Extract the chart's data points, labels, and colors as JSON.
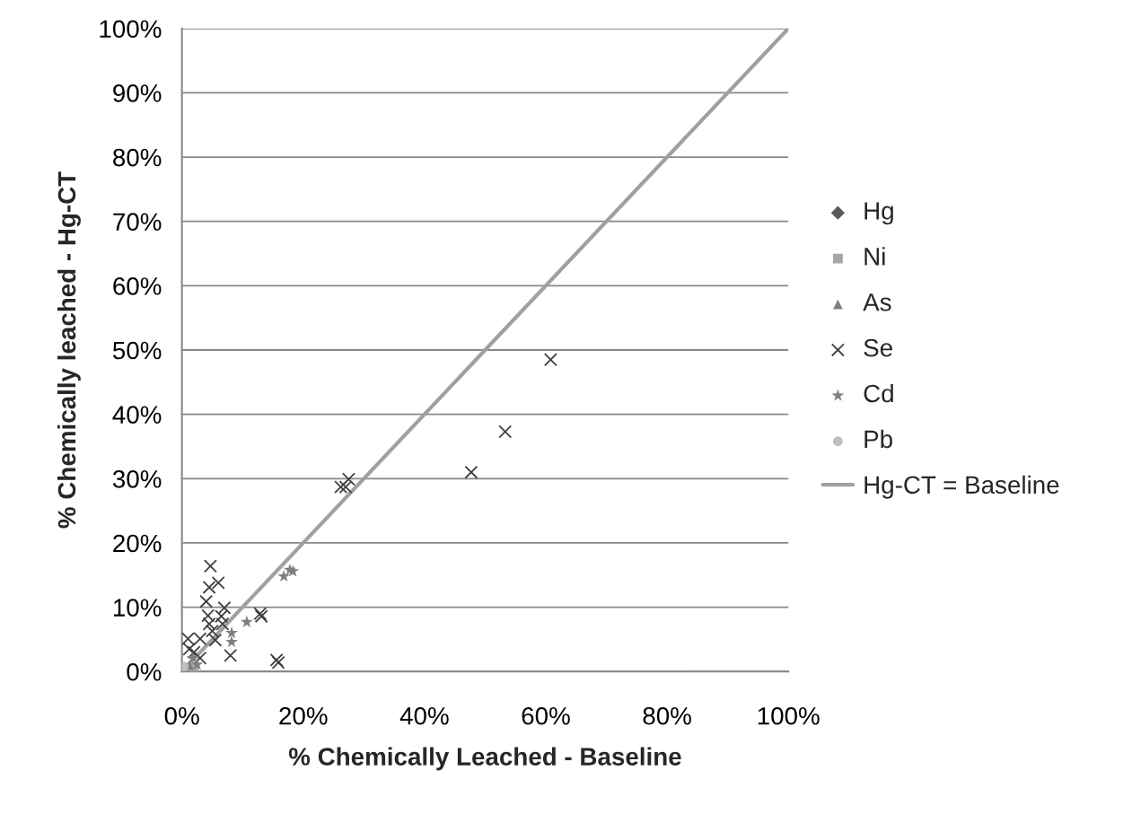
{
  "chart_data": {
    "type": "scatter",
    "xlabel": "% Chemically Leached - Baseline",
    "ylabel": "% Chemically leached - Hg-CT",
    "xlim": [
      0,
      1
    ],
    "ylim": [
      0,
      1
    ],
    "xticks": [
      {
        "value": 0,
        "label": "0%"
      },
      {
        "value": 0.2,
        "label": "20%"
      },
      {
        "value": 0.4,
        "label": "40%"
      },
      {
        "value": 0.6,
        "label": "60%"
      },
      {
        "value": 0.8,
        "label": "80%"
      },
      {
        "value": 1,
        "label": "100%"
      }
    ],
    "yticks": [
      {
        "value": 0,
        "label": "0%"
      },
      {
        "value": 0.1,
        "label": "10%"
      },
      {
        "value": 0.2,
        "label": "20%"
      },
      {
        "value": 0.3,
        "label": "30%"
      },
      {
        "value": 0.4,
        "label": "40%"
      },
      {
        "value": 0.5,
        "label": "50%"
      },
      {
        "value": 0.6,
        "label": "60%"
      },
      {
        "value": 0.7,
        "label": "70%"
      },
      {
        "value": 0.8,
        "label": "80%"
      },
      {
        "value": 0.9,
        "label": "90%"
      },
      {
        "value": 1,
        "label": "100%"
      }
    ],
    "grid": "y",
    "legend": "right",
    "series": [
      {
        "name": "Hg",
        "color": "#595959",
        "marker": "diamond"
      },
      {
        "name": "Ni",
        "color": "#a6a6a6",
        "marker": "square",
        "x": [
          0.02
        ],
        "values": [
          0.005
        ]
      },
      {
        "name": "As",
        "color": "#7f7f7f",
        "marker": "triangle",
        "x": [
          0.012
        ],
        "values": [
          0.01
        ]
      },
      {
        "name": "Se",
        "color": "#404040",
        "marker": "cross",
        "x": [
          0.608,
          0.533,
          0.477,
          0.275,
          0.262,
          0.27,
          0.047,
          0.06,
          0.045,
          0.04,
          0.07,
          0.043,
          0.045,
          0.065,
          0.067,
          0.129,
          0.131,
          0.08,
          0.156,
          0.159,
          0.01,
          0.012,
          0.03,
          0.05,
          0.055,
          0.03,
          0.02
        ],
        "values": [
          0.485,
          0.373,
          0.31,
          0.299,
          0.287,
          0.287,
          0.164,
          0.138,
          0.131,
          0.109,
          0.099,
          0.087,
          0.074,
          0.086,
          0.074,
          0.09,
          0.086,
          0.025,
          0.018,
          0.014,
          0.051,
          0.035,
          0.051,
          0.063,
          0.049,
          0.021,
          0.03
        ]
      },
      {
        "name": "Cd",
        "color": "#7f7f7f",
        "marker": "star",
        "x": [
          0.178,
          0.168,
          0.183,
          0.107,
          0.082,
          0.082,
          0.025,
          0.018
        ],
        "values": [
          0.158,
          0.148,
          0.156,
          0.077,
          0.06,
          0.046,
          0.011,
          0.021
        ]
      },
      {
        "name": "Pb",
        "color": "#bfbfbf",
        "marker": "circle",
        "x": [
          0.003
        ],
        "values": [
          0.008
        ]
      },
      {
        "name": "Hg-CT = Baseline",
        "type": "line",
        "color": "#a0a0a0",
        "line_style": "solid",
        "marker": "none",
        "x": [
          0,
          1
        ],
        "values": [
          0,
          1
        ]
      }
    ]
  }
}
